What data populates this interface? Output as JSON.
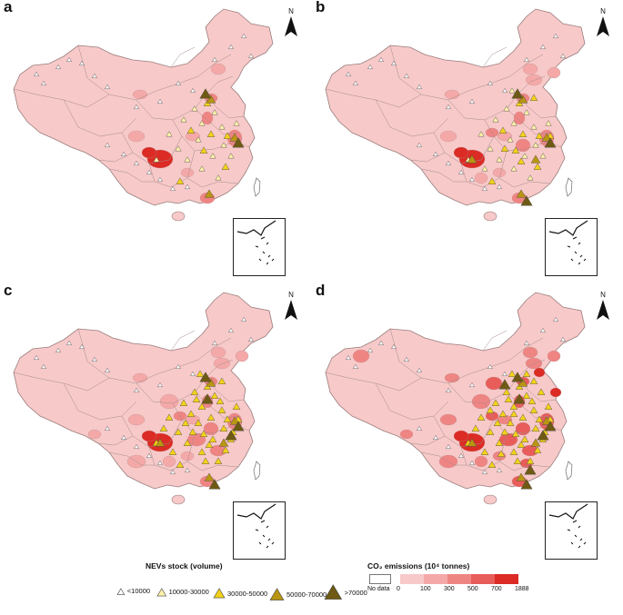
{
  "panels": [
    {
      "label": "a",
      "intensity": 0
    },
    {
      "label": "b",
      "intensity": 1
    },
    {
      "label": "c",
      "intensity": 2
    },
    {
      "label": "d",
      "intensity": 3
    }
  ],
  "north_label": "N",
  "nev_legend": {
    "title": "NEVs stock (volume)",
    "items": [
      {
        "label": "<10000",
        "color": "#ffffff",
        "size": "xs"
      },
      {
        "label": "10000-30000",
        "color": "#fdf3a8",
        "size": "s"
      },
      {
        "label": "30000-50000",
        "color": "#f3d21a",
        "size": "m"
      },
      {
        "label": "50000-70000",
        "color": "#b89612",
        "size": "l"
      },
      {
        "label": ">70000",
        "color": "#6e5a14",
        "size": "xl"
      }
    ]
  },
  "co2_legend": {
    "title": "CO₂ emissions (10⁴ tonnes)",
    "nodata_label": "No data",
    "ticks": [
      "0",
      "100",
      "300",
      "500",
      "700",
      "1888"
    ],
    "colors": [
      "#f7c9c9",
      "#f4a9a8",
      "#ef8583",
      "#e85d5a",
      "#db2b24"
    ]
  }
}
